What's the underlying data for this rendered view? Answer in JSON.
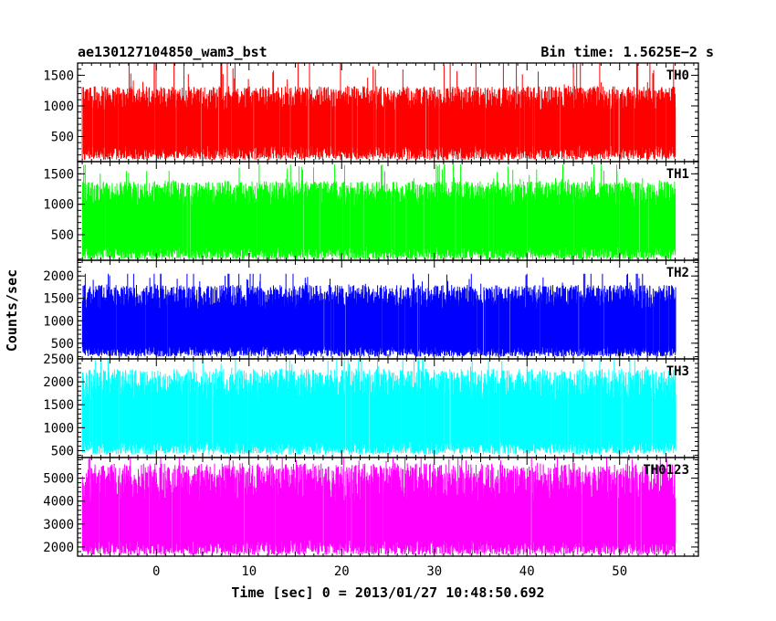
{
  "header": {
    "source": "ae130127104850_wam3_bst",
    "bin_time": "Bin time: 1.5625E−2 s"
  },
  "chart_data": {
    "type": "line",
    "title": "ae130127104850_wam3_bst",
    "xlabel": "Time [sec] 0 = 2013/01/27 10:48:50.692",
    "ylabel": "Counts/sec",
    "xlim": [
      -8.5,
      58.5
    ],
    "x_ticks": [
      0,
      10,
      20,
      30,
      40,
      50
    ],
    "x_tick_labels": [
      "0",
      "10",
      "20",
      "30",
      "40",
      "50"
    ],
    "x_data_range": [
      -8.0,
      56.0
    ],
    "bin_time": 0.015625,
    "grid": false,
    "legend": "none",
    "panels": [
      {
        "label": "TH0",
        "color": "#ff0000",
        "ylim": [
          90,
          1700
        ],
        "y_ticks": [
          500,
          1000,
          1500
        ],
        "y_tick_labels": [
          "500",
          "1000",
          "1500"
        ],
        "base_min": 120,
        "base_max": 350,
        "peak_typical": 1100,
        "peak_max": 1700
      },
      {
        "label": "TH1",
        "color": "#00ff00",
        "ylim": [
          80,
          1700
        ],
        "y_ticks": [
          500,
          1000,
          1500
        ],
        "y_tick_labels": [
          "500",
          "1000",
          "1500"
        ],
        "base_min": 90,
        "base_max": 300,
        "peak_typical": 1150,
        "peak_max": 1650
      },
      {
        "label": "TH2",
        "color": "#0000ff",
        "ylim": [
          150,
          2350
        ],
        "y_ticks": [
          500,
          1000,
          1500,
          2000
        ],
        "y_tick_labels": [
          "500",
          "1000",
          "1500",
          "2000"
        ],
        "base_min": 200,
        "base_max": 420,
        "peak_typical": 1500,
        "peak_max": 2050
      },
      {
        "label": "TH3",
        "color": "#00ffff",
        "ylim": [
          350,
          2500
        ],
        "y_ticks": [
          500,
          1000,
          1500,
          2000,
          2500
        ],
        "y_tick_labels": [
          "500",
          "1000",
          "1500",
          "2000",
          "2500"
        ],
        "base_min": 420,
        "base_max": 700,
        "peak_typical": 1900,
        "peak_max": 2500
      },
      {
        "label": "TH0123",
        "color": "#ff00ff",
        "ylim": [
          1600,
          5900
        ],
        "y_ticks": [
          2000,
          3000,
          4000,
          5000
        ],
        "y_tick_labels": [
          "2000",
          "3000",
          "4000",
          "5000"
        ],
        "base_min": 1650,
        "base_max": 2300,
        "peak_typical": 4700,
        "peak_max": 5900
      }
    ]
  }
}
